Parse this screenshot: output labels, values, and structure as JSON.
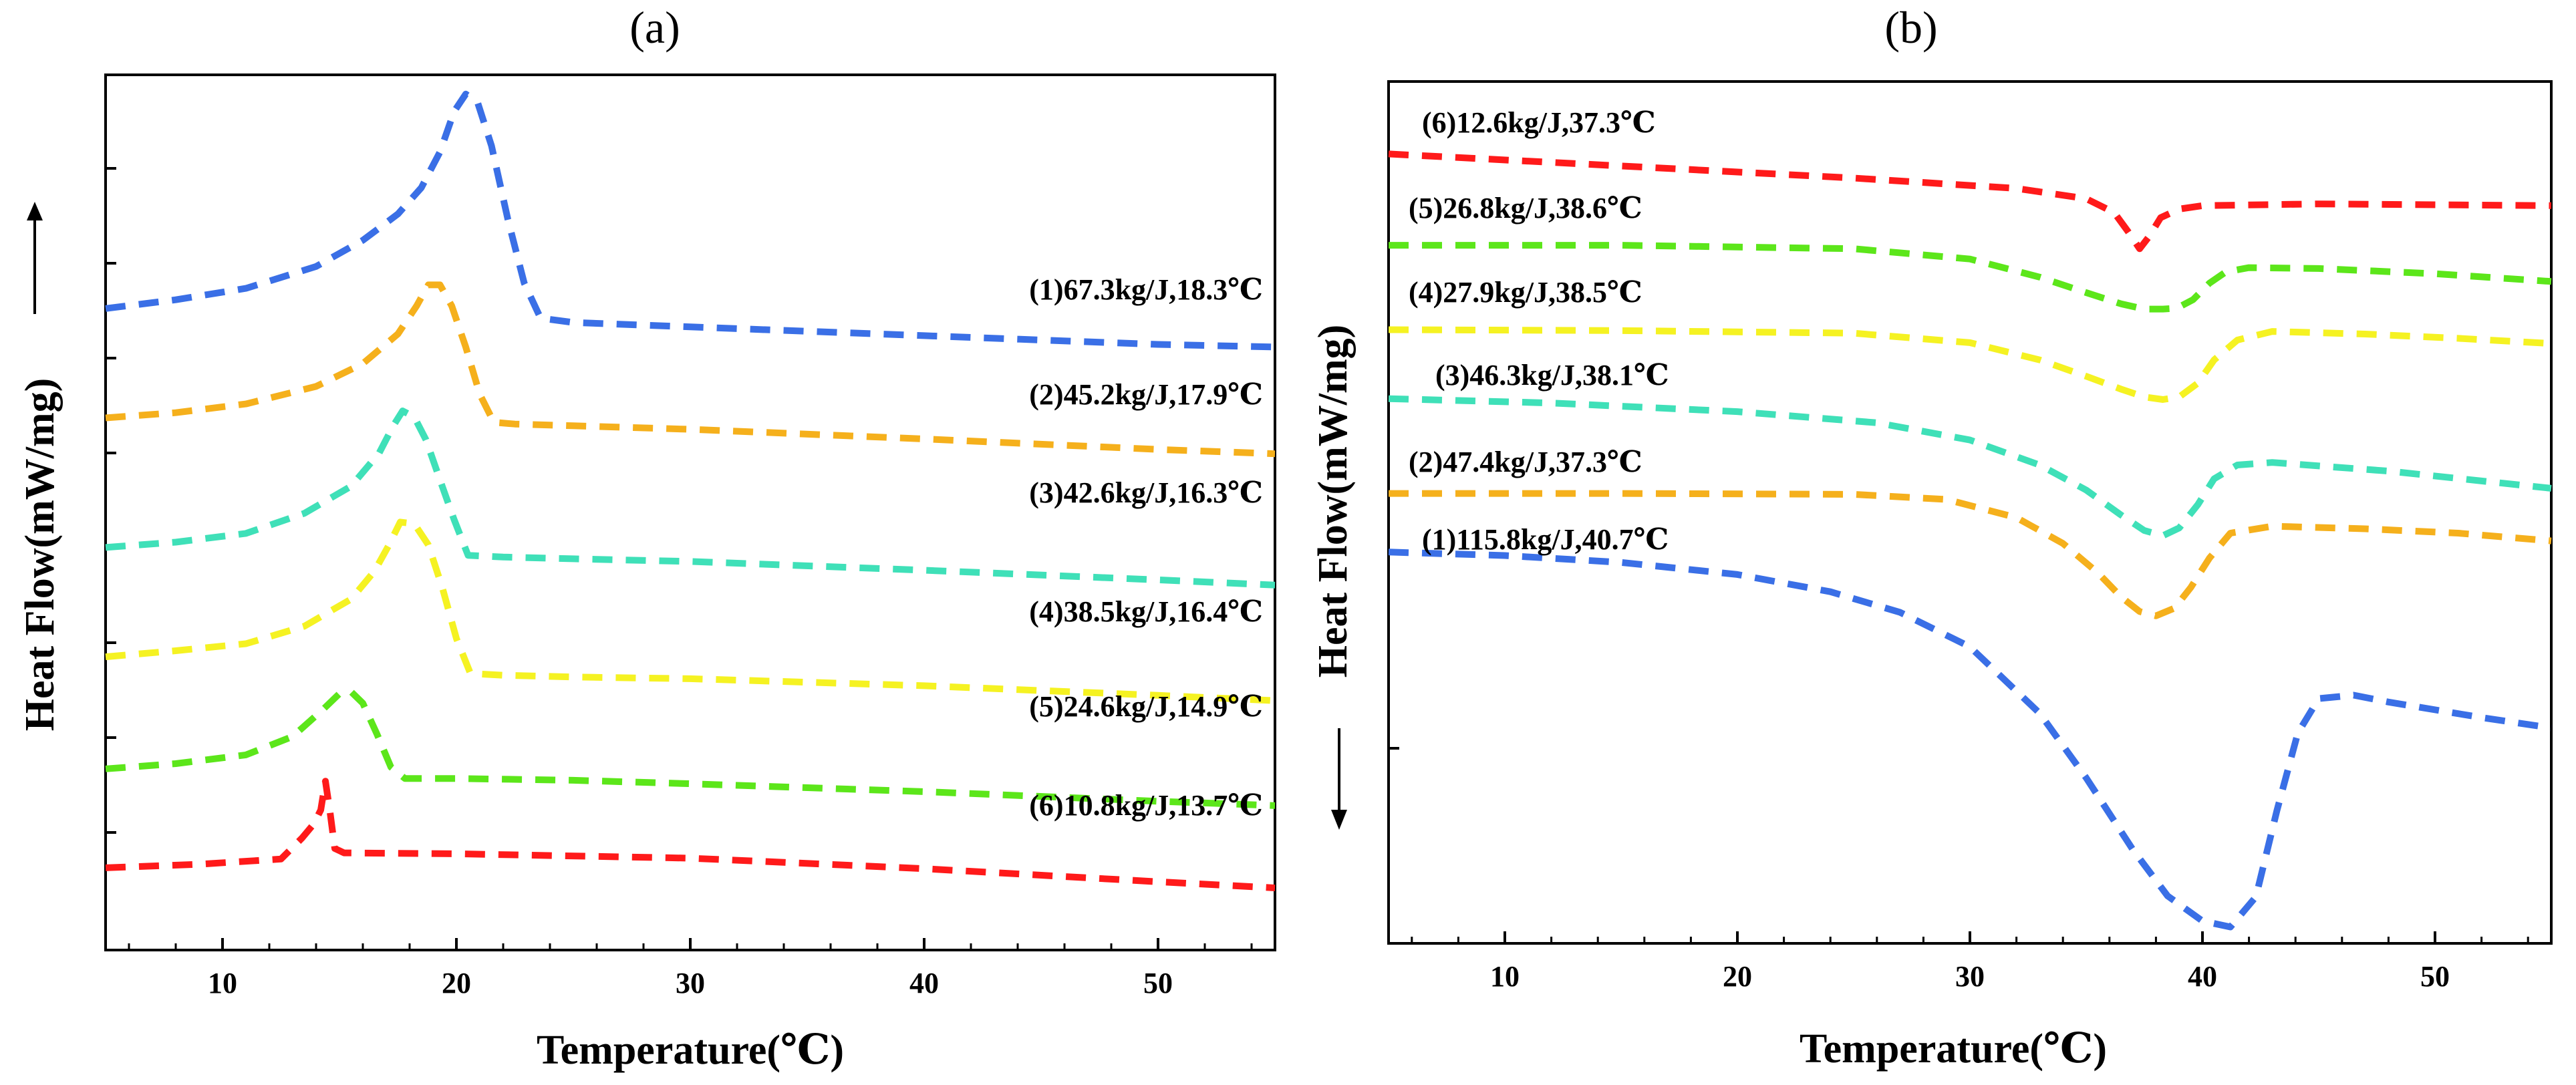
{
  "chart_data": [
    {
      "panel_label": "(a)",
      "type": "line",
      "xlabel": "Temperature(℃)",
      "ylabel": "Heat Flow(mW/mg)",
      "arrow_direction": "up",
      "xlim": [
        5,
        55
      ],
      "ylim": [
        0,
        100
      ],
      "x_ticks": [
        10,
        20,
        30,
        40,
        50
      ],
      "x_tick_labels": [
        "10",
        "20",
        "30",
        "40",
        "50"
      ],
      "y_tick_labels_shown": false,
      "grid": false,
      "series": [
        {
          "name": "(1)67.3kg/J,18.3℃",
          "color": "#3a6fe6",
          "x": [
            5,
            8,
            11,
            14,
            16,
            17.5,
            18.5,
            19.3,
            19.9,
            20.4,
            20.9,
            21.5,
            22.2,
            22.9,
            23.6,
            25,
            30,
            40,
            50,
            55
          ],
          "y": [
            73.3,
            74.3,
            75.6,
            78.1,
            81.1,
            84.1,
            87.1,
            91.2,
            95.8,
            97.8,
            96.9,
            91.9,
            83.5,
            76.2,
            72.2,
            71.7,
            71.2,
            70.2,
            69.2,
            68.9
          ]
        },
        {
          "name": "(2)45.2kg/J,17.9℃",
          "color": "#f5b01c",
          "x": [
            5,
            8,
            11,
            14,
            16,
            17.5,
            18.3,
            18.8,
            19.3,
            19.8,
            20.4,
            21.0,
            21.6,
            22.5,
            25,
            30,
            40,
            50,
            55
          ],
          "y": [
            60.8,
            61.4,
            62.4,
            64.4,
            67.0,
            70.4,
            73.6,
            76.0,
            76.0,
            73.6,
            68.9,
            63.5,
            60.3,
            60.1,
            59.9,
            59.5,
            58.4,
            57.2,
            56.7
          ]
        },
        {
          "name": "(3)42.6kg/J,16.3℃",
          "color": "#3fe0b8",
          "x": [
            5,
            8,
            11,
            13.5,
            15.5,
            16.7,
            17.3,
            17.7,
            18.2,
            18.7,
            19.3,
            19.9,
            20.5,
            22,
            25,
            30,
            40,
            50,
            55
          ],
          "y": [
            46.0,
            46.6,
            47.6,
            49.9,
            53.0,
            56.8,
            59.9,
            61.6,
            60.9,
            58.3,
            53.7,
            49.2,
            45.1,
            44.9,
            44.7,
            44.4,
            43.4,
            42.3,
            41.7
          ]
        },
        {
          "name": "(4)38.5kg/J,16.4℃",
          "color": "#f5f222",
          "x": [
            5,
            8,
            11,
            13.5,
            15.5,
            16.5,
            17.1,
            17.6,
            18.2,
            18.8,
            19.4,
            20.0,
            20.6,
            22,
            25,
            30,
            40,
            50,
            55
          ],
          "y": [
            33.5,
            34.2,
            35.0,
            37.0,
            40.1,
            43.3,
            46.2,
            48.9,
            48.7,
            46.3,
            41.4,
            35.6,
            31.6,
            31.4,
            31.2,
            31.0,
            30.2,
            29.1,
            28.5
          ]
        },
        {
          "name": "(5)24.6kg/J,14.9℃",
          "color": "#5ce61a",
          "x": [
            5,
            8,
            11,
            13,
            14.3,
            15.0,
            15.5,
            16.0,
            16.6,
            17.2,
            17.8,
            20,
            25,
            30,
            40,
            50,
            55
          ],
          "y": [
            20.7,
            21.3,
            22.3,
            24.4,
            27.5,
            29.3,
            29.5,
            28.2,
            24.7,
            20.9,
            19.6,
            19.6,
            19.4,
            19.0,
            18.1,
            17.0,
            16.5
          ]
        },
        {
          "name": "(6)10.8kg/J,13.7℃",
          "color": "#ff1a1a",
          "x": [
            5,
            9,
            12.5,
            13.4,
            13.9,
            14.2,
            14.4,
            14.6,
            14.8,
            15.2,
            20,
            30,
            40,
            50,
            55
          ],
          "y": [
            9.4,
            9.8,
            10.4,
            12.8,
            14.4,
            16.0,
            19.3,
            15.7,
            11.6,
            11.1,
            11.0,
            10.5,
            9.3,
            7.8,
            7.1
          ]
        }
      ]
    },
    {
      "panel_label": "(b)",
      "type": "line",
      "xlabel": "Temperature(℃)",
      "ylabel": "Heat Flow(mW/mg)",
      "arrow_direction": "down",
      "xlim": [
        5,
        55
      ],
      "ylim": [
        0,
        100
      ],
      "x_ticks": [
        10,
        20,
        30,
        40,
        50
      ],
      "x_tick_labels": [
        "10",
        "20",
        "30",
        "40",
        "50"
      ],
      "y_tick_labels_shown": false,
      "grid": false,
      "series": [
        {
          "name": "(6)12.6kg/J,37.3℃",
          "color": "#ff1a1a",
          "x": [
            5,
            15,
            25,
            32,
            35,
            36.2,
            36.8,
            37.3,
            37.7,
            38.2,
            39,
            40,
            45,
            55
          ],
          "y": [
            91.6,
            90.2,
            88.8,
            87.6,
            86.4,
            84.8,
            82.6,
            80.6,
            82.0,
            84.2,
            85.2,
            85.6,
            85.8,
            85.6
          ]
        },
        {
          "name": "(5)26.8kg/J,38.6℃",
          "color": "#5ce61a",
          "x": [
            5,
            15,
            25,
            30,
            33,
            35,
            36.5,
            37.5,
            38.3,
            38.9,
            39.6,
            40.3,
            41,
            42,
            45,
            50,
            55
          ],
          "y": [
            81.0,
            81.0,
            80.6,
            79.4,
            77.3,
            75.5,
            74.2,
            73.6,
            73.6,
            73.7,
            74.7,
            76.6,
            77.9,
            78.4,
            78.3,
            77.7,
            76.8
          ]
        },
        {
          "name": "(4)27.9kg/J,38.5℃",
          "color": "#f5f222",
          "x": [
            5,
            15,
            25,
            30,
            33,
            35,
            36.5,
            37.5,
            38.3,
            39.0,
            39.8,
            40.5,
            41.5,
            43,
            47,
            51,
            55
          ],
          "y": [
            71.2,
            71.1,
            70.8,
            69.7,
            67.7,
            65.8,
            64.3,
            63.4,
            63.1,
            63.4,
            65.0,
            67.7,
            70.0,
            71.0,
            70.7,
            70.2,
            69.6
          ]
        },
        {
          "name": "(3)46.3kg/J,38.1℃",
          "color": "#3fe0b8",
          "x": [
            5,
            12,
            20,
            26,
            30,
            33,
            35,
            36.5,
            37.5,
            38.3,
            39.0,
            39.8,
            40.5,
            41.5,
            43,
            48,
            55
          ],
          "y": [
            63.2,
            62.7,
            61.7,
            60.4,
            58.4,
            55.5,
            52.6,
            49.7,
            47.9,
            47.3,
            48.2,
            50.9,
            53.9,
            55.5,
            55.8,
            54.8,
            52.8
          ]
        },
        {
          "name": "(2)47.4kg/J,37.3℃",
          "color": "#f5b01c",
          "x": [
            5,
            15,
            25,
            29,
            32,
            34,
            35.5,
            36.5,
            37.3,
            38.0,
            38.8,
            39.5,
            40.3,
            41.2,
            43,
            47,
            51,
            55
          ],
          "y": [
            52.2,
            52.2,
            52.1,
            51.5,
            49.4,
            46.4,
            43.0,
            40.2,
            38.5,
            38.0,
            38.9,
            41.3,
            44.7,
            47.6,
            48.4,
            48.1,
            47.6,
            46.7
          ]
        },
        {
          "name": "(1)115.8kg/J,40.7℃",
          "color": "#3a6fe6",
          "x": [
            5,
            10,
            15,
            20,
            24,
            27,
            30,
            33,
            35,
            37,
            38.5,
            40,
            41.2,
            42.3,
            43.2,
            44.1,
            45,
            46.5,
            48,
            52,
            55
          ],
          "y": [
            45.4,
            45.0,
            44.2,
            42.8,
            40.8,
            38.4,
            34.4,
            26.7,
            19.2,
            10.9,
            5.5,
            2.6,
            1.9,
            5.4,
            15.4,
            24.4,
            28.4,
            28.8,
            28.0,
            26.2,
            25.0
          ]
        }
      ]
    }
  ]
}
